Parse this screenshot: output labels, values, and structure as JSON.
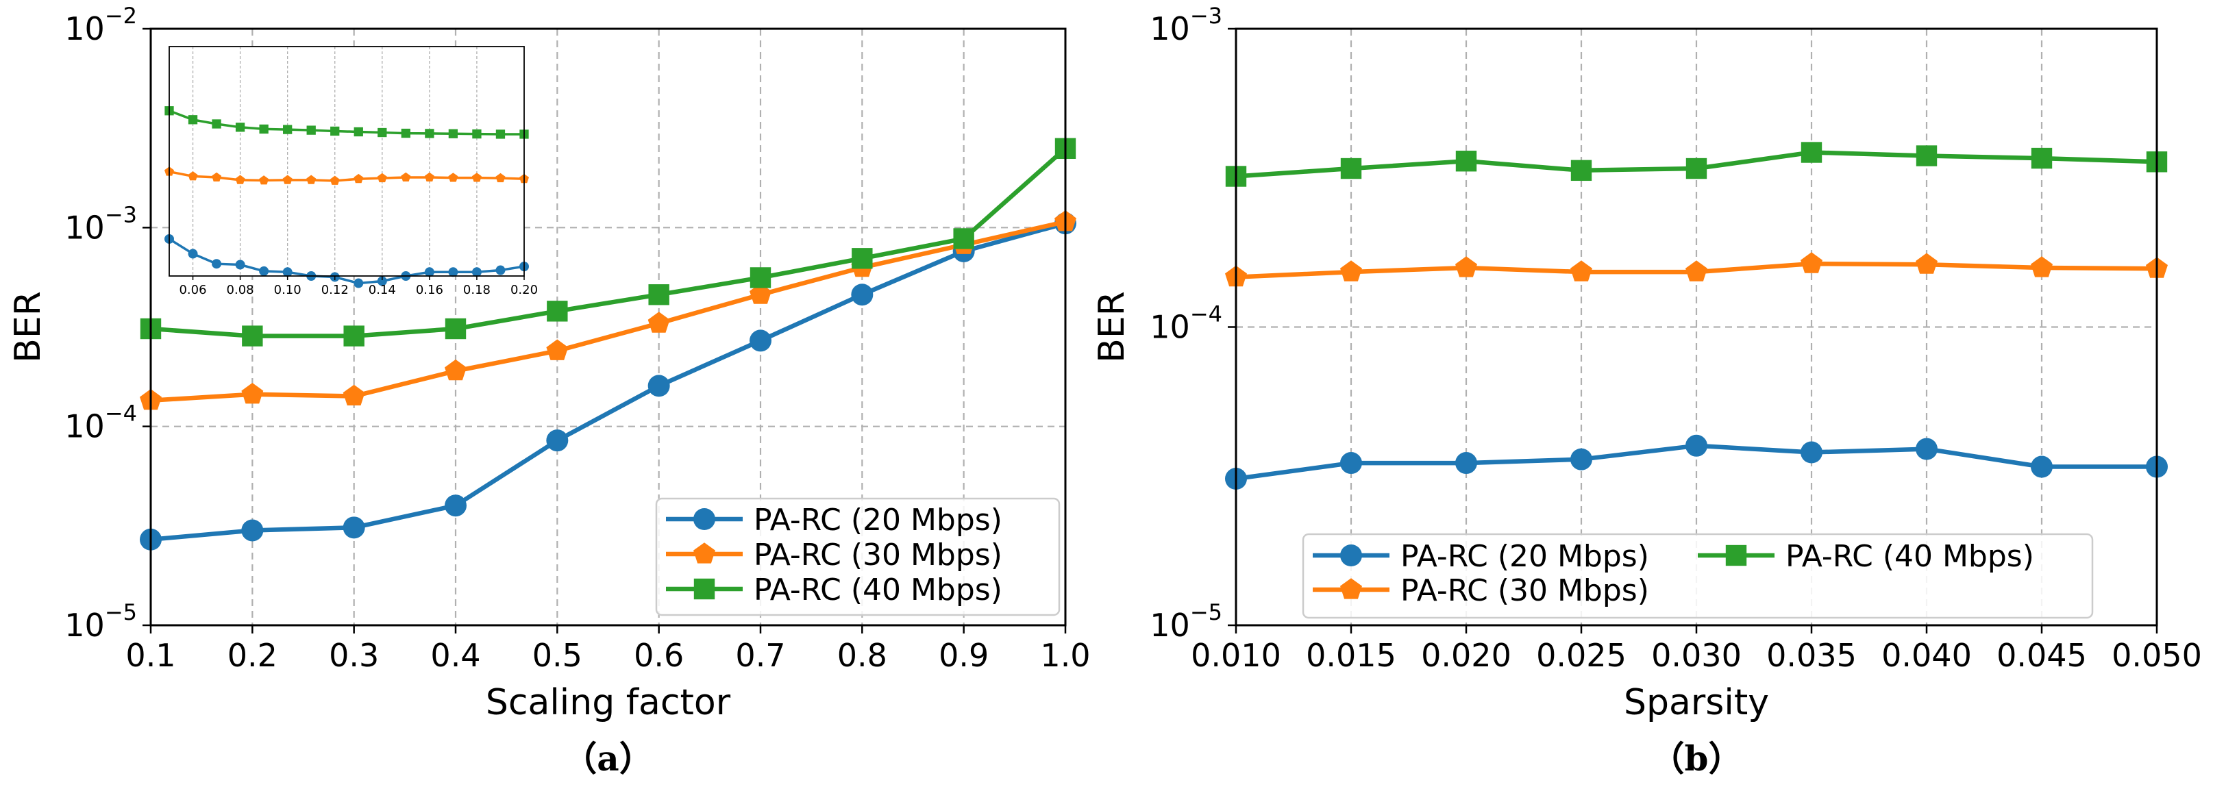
{
  "colors": {
    "series20": "#1f77b4",
    "series30": "#ff7f0e",
    "series40": "#2ca02c",
    "grid": "#b0b0b0"
  },
  "chart_data": [
    {
      "type": "line",
      "panel": "a",
      "caption": "（a）",
      "xlabel": "Scaling factor",
      "ylabel": "BER",
      "yscale": "log",
      "xlim": [
        0.1,
        1.0
      ],
      "ylim": [
        1e-05,
        0.01
      ],
      "xticks": [
        "0.1",
        "0.2",
        "0.3",
        "0.4",
        "0.5",
        "0.6",
        "0.7",
        "0.8",
        "0.9",
        "1.0"
      ],
      "yticks": [
        {
          "base": "10",
          "exp": "−5"
        },
        {
          "base": "10",
          "exp": "−4"
        },
        {
          "base": "10",
          "exp": "−3"
        },
        {
          "base": "10",
          "exp": "−2"
        }
      ],
      "grid": true,
      "legend_position": "lower-right",
      "x": [
        0.1,
        0.2,
        0.3,
        0.4,
        0.5,
        0.6,
        0.7,
        0.8,
        0.9,
        1.0
      ],
      "series": [
        {
          "name": "PA-RC (20 Mbps)",
          "marker": "circle",
          "values": [
            2.7e-05,
            3e-05,
            3.1e-05,
            4e-05,
            8.5e-05,
            0.00016,
            0.00027,
            0.00046,
            0.00076,
            0.00105
          ]
        },
        {
          "name": "PA-RC (30 Mbps)",
          "marker": "pentagon",
          "values": [
            0.000135,
            0.000145,
            0.000142,
            0.00019,
            0.00024,
            0.00033,
            0.00046,
            0.00063,
            0.00082,
            0.00107
          ]
        },
        {
          "name": "PA-RC (40 Mbps)",
          "marker": "square",
          "values": [
            0.00031,
            0.000285,
            0.000285,
            0.00031,
            0.00038,
            0.00046,
            0.00056,
            0.0007,
            0.00088,
            0.0025
          ]
        }
      ],
      "inset": {
        "xlim": [
          0.05,
          0.2
        ],
        "xticks": [
          "0.06",
          "0.08",
          "0.10",
          "0.12",
          "0.14",
          "0.16",
          "0.18",
          "0.20"
        ],
        "x": [
          0.05,
          0.06,
          0.07,
          0.08,
          0.09,
          0.1,
          0.11,
          0.12,
          0.13,
          0.14,
          0.15,
          0.16,
          0.17,
          0.18,
          0.19,
          0.2
        ],
        "series": [
          {
            "name": "PA-RC (20 Mbps)",
            "marker": "circle",
            "values": [
              1.45e-05,
              1.25e-05,
              1.13e-05,
              1.12e-05,
              1.05e-05,
              1.04e-05,
              1e-05,
              9.9e-06,
              9.3e-06,
              9.5e-06,
              1e-05,
              1.04e-05,
              1.04e-05,
              1.04e-05,
              1.06e-05,
              1.1e-05
            ]
          },
          {
            "name": "PA-RC (30 Mbps)",
            "marker": "pentagon",
            "values": [
              2.85e-05,
              2.72e-05,
              2.69e-05,
              2.62e-05,
              2.61e-05,
              2.62e-05,
              2.62e-05,
              2.6e-05,
              2.65e-05,
              2.67e-05,
              2.69e-05,
              2.69e-05,
              2.68e-05,
              2.68e-05,
              2.67e-05,
              2.65e-05
            ]
          },
          {
            "name": "PA-RC (40 Mbps)",
            "marker": "square",
            "values": [
              5.25e-05,
              4.8e-05,
              4.6e-05,
              4.45e-05,
              4.37e-05,
              4.35e-05,
              4.32e-05,
              4.28e-05,
              4.25e-05,
              4.22e-05,
              4.19e-05,
              4.18e-05,
              4.17e-05,
              4.16e-05,
              4.15e-05,
              4.15e-05
            ]
          }
        ]
      }
    },
    {
      "type": "line",
      "panel": "b",
      "caption": "（b）",
      "xlabel": "Sparsity",
      "ylabel": "BER",
      "yscale": "log",
      "xlim": [
        0.01,
        0.05
      ],
      "ylim": [
        1e-05,
        0.001
      ],
      "xticks": [
        "0.010",
        "0.015",
        "0.020",
        "0.025",
        "0.030",
        "0.035",
        "0.040",
        "0.045",
        "0.050"
      ],
      "yticks": [
        {
          "base": "10",
          "exp": "−5"
        },
        {
          "base": "10",
          "exp": "−4"
        },
        {
          "base": "10",
          "exp": "−3"
        }
      ],
      "grid": true,
      "legend_position": "bottom",
      "x": [
        0.01,
        0.015,
        0.02,
        0.025,
        0.03,
        0.035,
        0.04,
        0.045,
        0.05
      ],
      "series": [
        {
          "name": "PA-RC (20 Mbps)",
          "marker": "circle",
          "values": [
            3.1e-05,
            3.5e-05,
            3.5e-05,
            3.6e-05,
            4e-05,
            3.8e-05,
            3.9e-05,
            3.4e-05,
            3.4e-05
          ]
        },
        {
          "name": "PA-RC (30 Mbps)",
          "marker": "pentagon",
          "values": [
            0.000147,
            0.000153,
            0.000158,
            0.000153,
            0.000153,
            0.000163,
            0.000162,
            0.000158,
            0.000157
          ]
        },
        {
          "name": "PA-RC (40 Mbps)",
          "marker": "square",
          "values": [
            0.00032,
            0.00034,
            0.00036,
            0.000335,
            0.00034,
            0.000385,
            0.000375,
            0.000368,
            0.000358
          ]
        }
      ]
    }
  ]
}
